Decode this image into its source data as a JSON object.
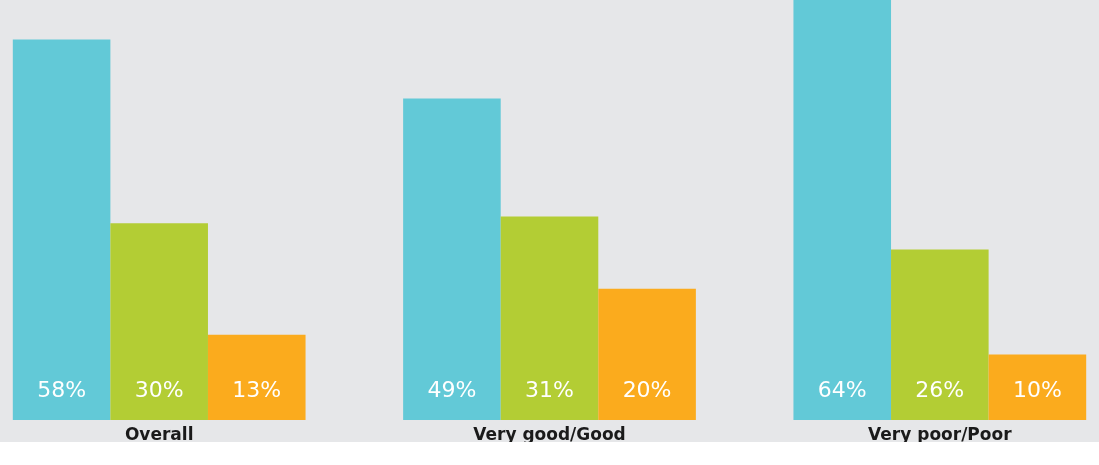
{
  "chart_data": {
    "type": "bar",
    "categories": [
      "Overall",
      "Very good/Good",
      "Very poor/Poor"
    ],
    "series": [
      {
        "color": "#62c9d7",
        "values": [
          58,
          49,
          64
        ],
        "value_labels": [
          "58%",
          "49%",
          "64%"
        ]
      },
      {
        "color": "#b3cd34",
        "values": [
          30,
          31,
          26
        ],
        "value_labels": [
          "30%",
          "31%",
          "26%"
        ]
      },
      {
        "color": "#fbab1d",
        "values": [
          13,
          20,
          10
        ],
        "value_labels": [
          "13%",
          "20%",
          "10%"
        ]
      }
    ],
    "tick_labels": "x",
    "grid": false,
    "legend": false
  }
}
